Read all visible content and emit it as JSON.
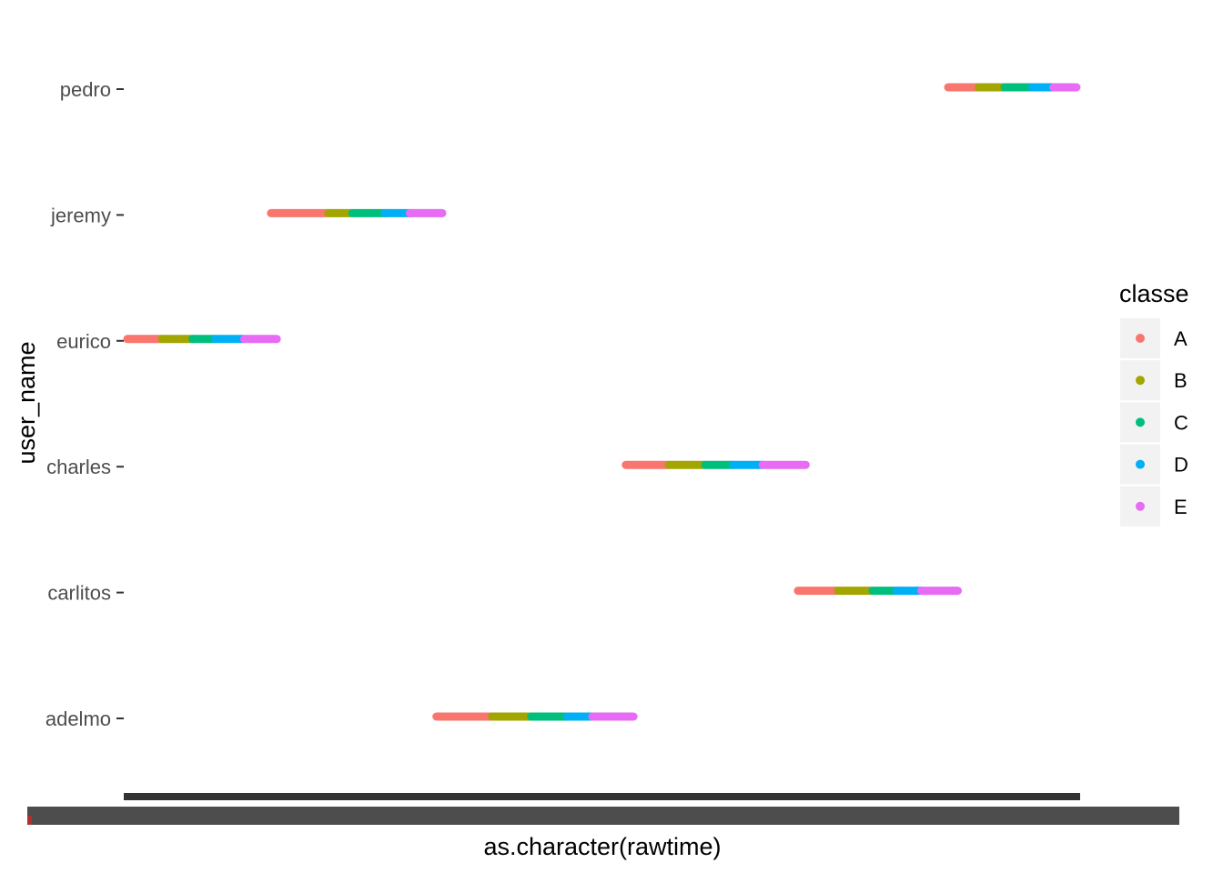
{
  "chart_data": {
    "type": "scatter",
    "xlabel": "as.character(rawtime)",
    "ylabel": "user_name",
    "categories": [
      "adelmo",
      "carlitos",
      "charles",
      "eurico",
      "jeremy",
      "pedro"
    ],
    "x_tick_labels_illegible": true,
    "grid": false,
    "legend": {
      "title": "classe",
      "position": "right",
      "entries": [
        {
          "label": "A",
          "color": "#F8766D"
        },
        {
          "label": "B",
          "color": "#A3A500"
        },
        {
          "label": "C",
          "color": "#00BF7D"
        },
        {
          "label": "D",
          "color": "#00B0F6"
        },
        {
          "label": "E",
          "color": "#E76BF3"
        }
      ]
    },
    "x_rank_range": [
      0,
      1
    ],
    "series": [
      {
        "user": "pedro",
        "segments": [
          {
            "classe": "A",
            "from": 0.862,
            "to": 0.894
          },
          {
            "classe": "B",
            "from": 0.894,
            "to": 0.921
          },
          {
            "classe": "C",
            "from": 0.921,
            "to": 0.95
          },
          {
            "classe": "D",
            "from": 0.95,
            "to": 0.972
          },
          {
            "classe": "E",
            "from": 0.972,
            "to": 1.0
          }
        ]
      },
      {
        "user": "jeremy",
        "segments": [
          {
            "classe": "A",
            "from": 0.154,
            "to": 0.214
          },
          {
            "classe": "B",
            "from": 0.214,
            "to": 0.239
          },
          {
            "classe": "C",
            "from": 0.239,
            "to": 0.273
          },
          {
            "classe": "D",
            "from": 0.273,
            "to": 0.299
          },
          {
            "classe": "E",
            "from": 0.299,
            "to": 0.333
          }
        ]
      },
      {
        "user": "eurico",
        "segments": [
          {
            "classe": "A",
            "from": 0.0,
            "to": 0.04
          },
          {
            "classe": "B",
            "from": 0.04,
            "to": 0.072
          },
          {
            "classe": "C",
            "from": 0.072,
            "to": 0.096
          },
          {
            "classe": "D",
            "from": 0.096,
            "to": 0.126
          },
          {
            "classe": "E",
            "from": 0.126,
            "to": 0.16
          }
        ]
      },
      {
        "user": "charles",
        "segments": [
          {
            "classe": "A",
            "from": 0.525,
            "to": 0.57
          },
          {
            "classe": "B",
            "from": 0.57,
            "to": 0.608
          },
          {
            "classe": "C",
            "from": 0.608,
            "to": 0.637
          },
          {
            "classe": "D",
            "from": 0.637,
            "to": 0.668
          },
          {
            "classe": "E",
            "from": 0.668,
            "to": 0.713
          }
        ]
      },
      {
        "user": "carlitos",
        "segments": [
          {
            "classe": "A",
            "from": 0.705,
            "to": 0.747
          },
          {
            "classe": "B",
            "from": 0.747,
            "to": 0.783
          },
          {
            "classe": "C",
            "from": 0.783,
            "to": 0.808
          },
          {
            "classe": "D",
            "from": 0.808,
            "to": 0.834
          },
          {
            "classe": "E",
            "from": 0.834,
            "to": 0.872
          }
        ]
      },
      {
        "user": "adelmo",
        "segments": [
          {
            "classe": "A",
            "from": 0.327,
            "to": 0.385
          },
          {
            "classe": "B",
            "from": 0.385,
            "to": 0.426
          },
          {
            "classe": "C",
            "from": 0.426,
            "to": 0.464
          },
          {
            "classe": "D",
            "from": 0.464,
            "to": 0.49
          },
          {
            "classe": "E",
            "from": 0.49,
            "to": 0.533
          }
        ]
      }
    ]
  }
}
